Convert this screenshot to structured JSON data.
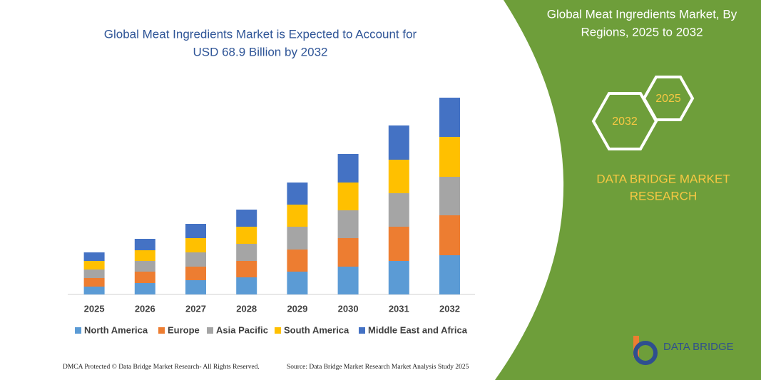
{
  "chart_data": {
    "type": "stacked-bar",
    "title": [
      "Global Meat Ingredients Market is Expected to Account for",
      "USD 68.9 Billion by 2032"
    ],
    "categories": [
      "2025",
      "2026",
      "2027",
      "2028",
      "2029",
      "2030",
      "2031",
      "2032"
    ],
    "series": [
      {
        "name": "North America",
        "color": "#5b9bd5",
        "values": [
          11,
          16,
          20,
          24,
          32,
          39,
          47,
          55
        ]
      },
      {
        "name": "Europe",
        "color": "#ed7d31",
        "values": [
          12,
          16,
          19,
          23,
          31,
          40,
          48,
          56
        ]
      },
      {
        "name": "Asia Pacific",
        "color": "#a5a5a5",
        "values": [
          12,
          15,
          20,
          24,
          32,
          39,
          47,
          54
        ]
      },
      {
        "name": "South America",
        "color": "#ffc000",
        "values": [
          12,
          15,
          20,
          24,
          31,
          39,
          47,
          56
        ]
      },
      {
        "name": "Middle East and Africa",
        "color": "#4472c4",
        "values": [
          12,
          16,
          20,
          24,
          31,
          40,
          48,
          55
        ]
      }
    ]
  },
  "panel": {
    "title": [
      "Global Meat Ingredients Market, By",
      "Regions, 2025 to 2032"
    ],
    "hex_front": "2032",
    "hex_back": "2025",
    "brand": [
      "DATA BRIDGE MARKET",
      "RESEARCH"
    ],
    "logo": "DATA BRIDGE"
  },
  "footer": {
    "left": "DMCA Protected © Data Bridge Market Research- All Rights Reserved.",
    "right": "Source: Data Bridge Market Research Market Analysis Study 2025"
  }
}
